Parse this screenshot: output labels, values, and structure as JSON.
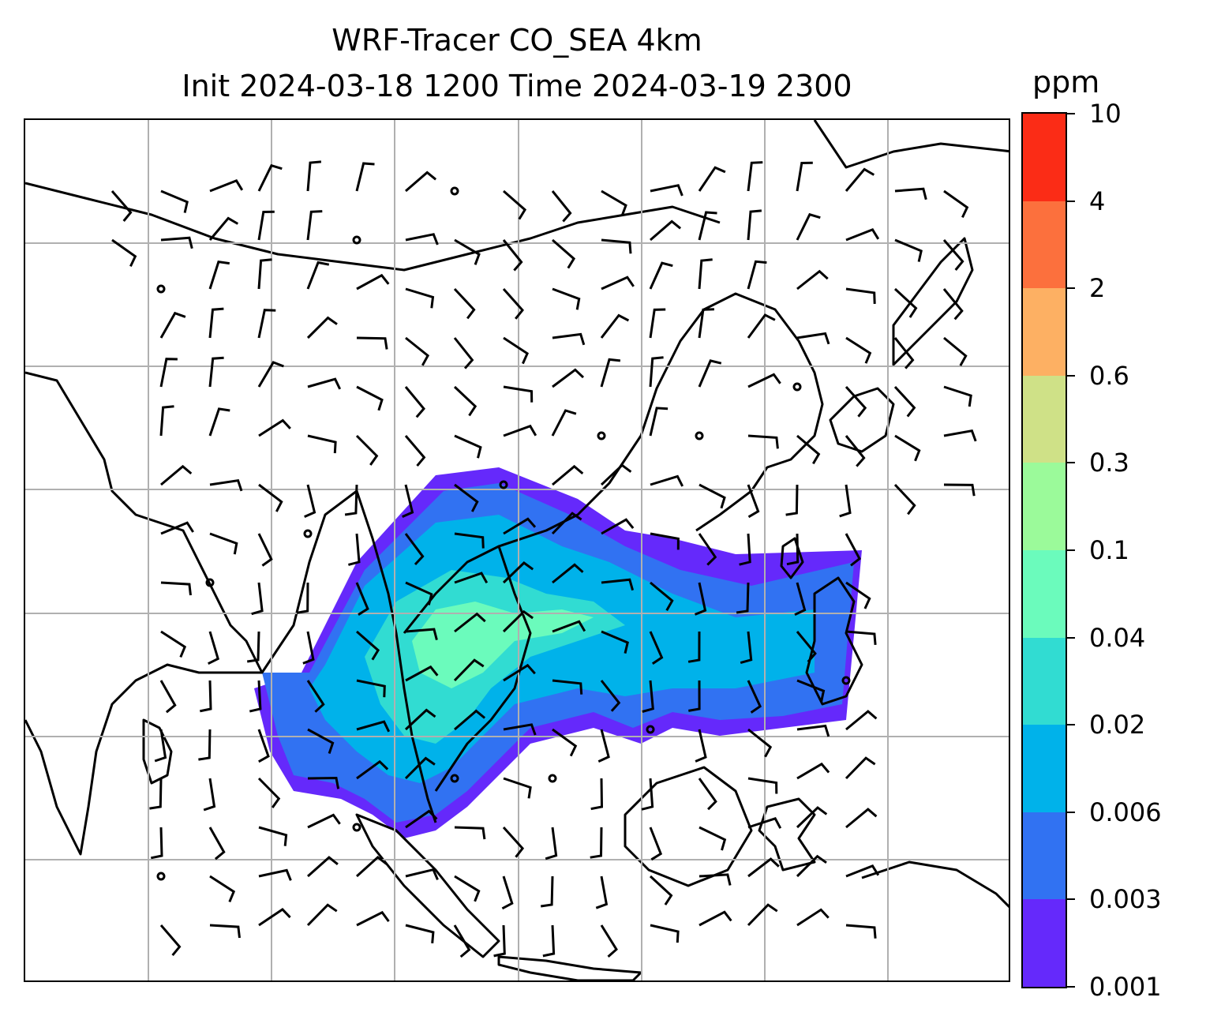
{
  "title": {
    "line1": "WRF-Tracer CO_SEA 4km",
    "line2": "Init 2024-03-18 1200 Time 2024-03-19 2300"
  },
  "colorbar": {
    "unit": "ppm",
    "ticks": [
      "0.001",
      "0.003",
      "0.006",
      "0.02",
      "0.04",
      "0.1",
      "0.3",
      "0.6",
      "2",
      "4",
      "10"
    ],
    "colors": [
      "#6529fb",
      "#3172f2",
      "#00b2ea",
      "#31dcd2",
      "#6bfbbc",
      "#9bfa9a",
      "#cfe187",
      "#fdb063",
      "#fc703d",
      "#fb2c16"
    ]
  },
  "map": {
    "gridlines": true,
    "overlays": [
      "coastlines",
      "wind-barbs",
      "co-tracer-concentration"
    ]
  }
}
